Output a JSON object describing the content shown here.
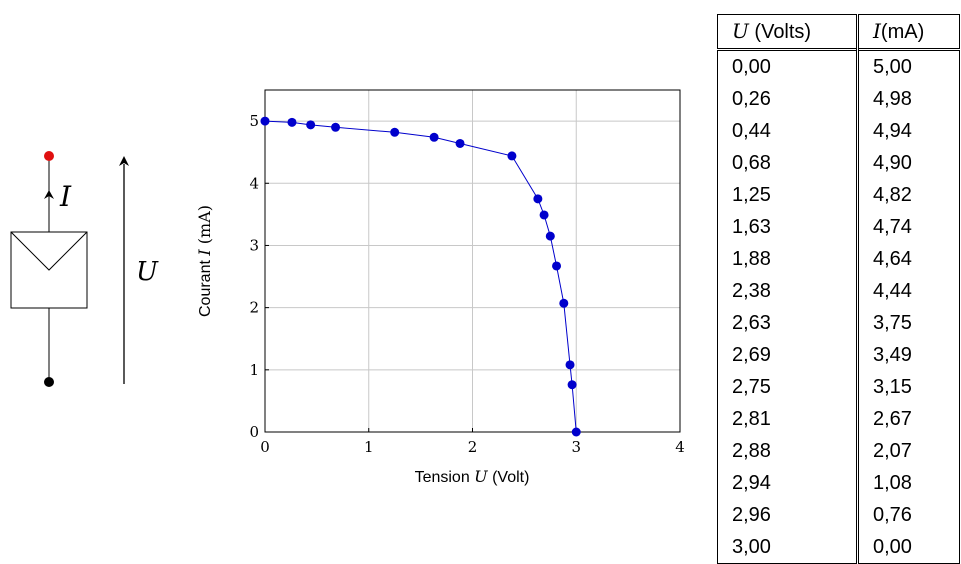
{
  "circuit": {
    "current_label": "I",
    "voltage_label": "U",
    "terminal_top_color": "#e01010",
    "terminal_bottom_color": "#000000"
  },
  "chart_data": {
    "type": "line",
    "markers": true,
    "title": "",
    "xlabel_text": "Tension ",
    "xlabel_var": "U",
    "xlabel_unit": " (Volt)",
    "ylabel_text": "Courant ",
    "ylabel_var": "I",
    "ylabel_unit": " (mA)",
    "xlim": [
      0,
      4
    ],
    "ylim": [
      0,
      5.5
    ],
    "xticks": [
      0,
      1,
      2,
      3,
      4
    ],
    "yticks": [
      0,
      1,
      2,
      3,
      4,
      5
    ],
    "grid": true,
    "series_color": "#0000cc",
    "series": [
      {
        "x": [
          0.0,
          0.26,
          0.44,
          0.68,
          1.25,
          1.63,
          1.88,
          2.38,
          2.63,
          2.69,
          2.75,
          2.81,
          2.88,
          2.94,
          2.96,
          3.0
        ],
        "y": [
          5.0,
          4.98,
          4.94,
          4.9,
          4.82,
          4.74,
          4.64,
          4.44,
          3.75,
          3.49,
          3.15,
          2.67,
          2.07,
          1.08,
          0.76,
          0.0
        ]
      }
    ]
  },
  "table": {
    "header_u_var": "U",
    "header_u_unit": " (Volts)",
    "header_i_var": "I",
    "header_i_unit": "(mA)",
    "rows": [
      {
        "u": "0,00",
        "i": "5,00"
      },
      {
        "u": "0,26",
        "i": "4,98"
      },
      {
        "u": "0,44",
        "i": "4,94"
      },
      {
        "u": "0,68",
        "i": "4,90"
      },
      {
        "u": "1,25",
        "i": "4,82"
      },
      {
        "u": "1,63",
        "i": "4,74"
      },
      {
        "u": "1,88",
        "i": "4,64"
      },
      {
        "u": "2,38",
        "i": "4,44"
      },
      {
        "u": "2,63",
        "i": "3,75"
      },
      {
        "u": "2,69",
        "i": "3,49"
      },
      {
        "u": "2,75",
        "i": "3,15"
      },
      {
        "u": "2,81",
        "i": "2,67"
      },
      {
        "u": "2,88",
        "i": "2,07"
      },
      {
        "u": "2,94",
        "i": "1,08"
      },
      {
        "u": "2,96",
        "i": "0,76"
      },
      {
        "u": "3,00",
        "i": "0,00"
      }
    ]
  }
}
